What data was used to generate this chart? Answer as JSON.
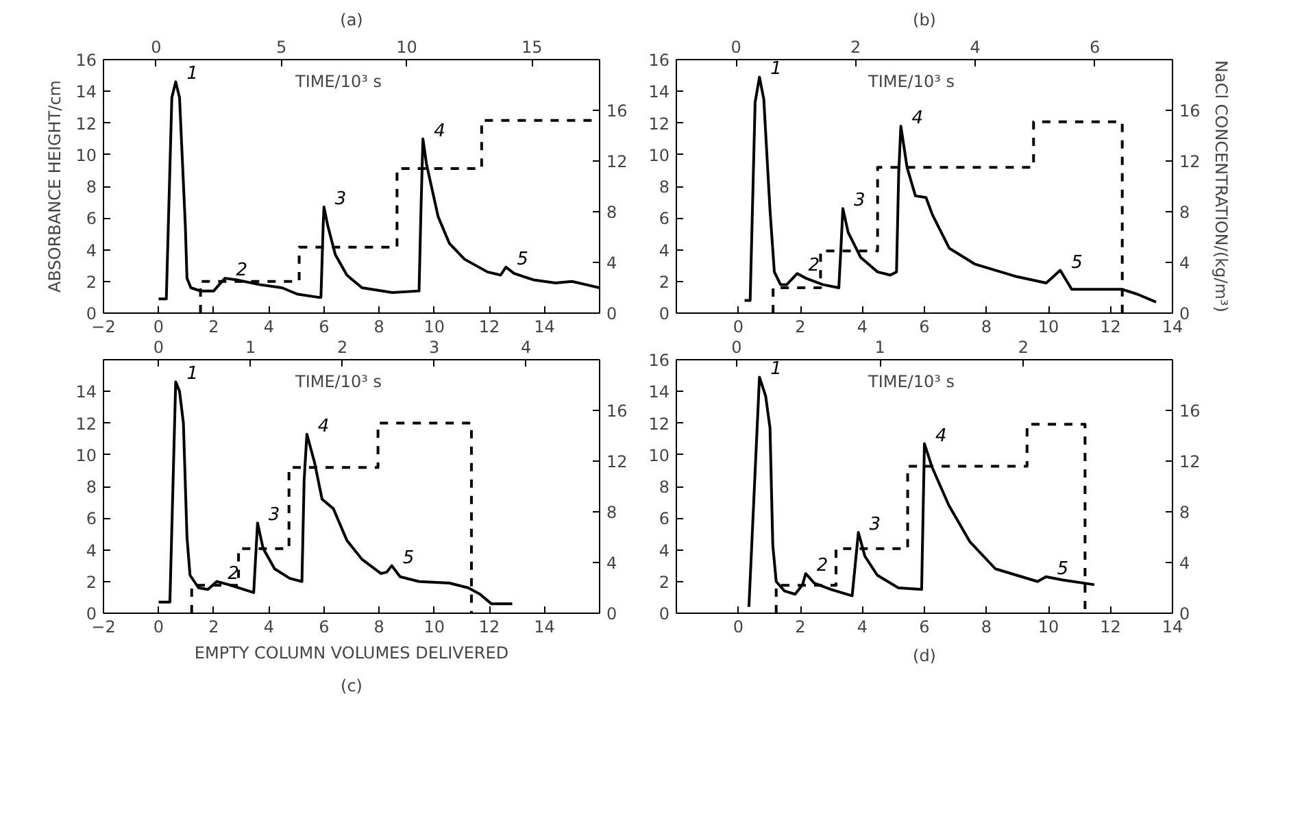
{
  "chart_data": [
    {
      "type": "line",
      "title": "(a)",
      "ylabel": "ABSORBANCE HEIGHT/cm",
      "x2label": "TIME/10³ s",
      "xlim": [
        -2,
        16
      ],
      "xticks": [
        -2,
        0,
        2,
        4,
        6,
        8,
        10,
        12,
        14
      ],
      "ylim": [
        0,
        16
      ],
      "yticks": [
        0,
        2,
        4,
        6,
        8,
        10,
        12,
        14,
        16
      ],
      "y2lim": [
        0,
        20
      ],
      "y2ticks": [
        0,
        4,
        8,
        12,
        16
      ],
      "x2lim": [
        -2.1,
        17.7
      ],
      "x2ticks": [
        0,
        5,
        10,
        15
      ],
      "grid": false,
      "series": [
        {
          "color": "#000000",
          "line_style": "solid",
          "x": [
            0,
            0.28,
            0.48,
            0.62,
            0.76,
            0.97,
            1.03,
            1.17,
            1.52,
            2.0,
            2.2,
            2.41,
            2.83,
            3.66,
            4.48,
            5.03,
            5.79,
            5.89,
            5.97,
            6.0,
            6.14,
            6.41,
            6.83,
            7.38,
            8.48,
            9.45,
            9.52,
            9.59,
            9.72,
            10.14,
            10.55,
            11.1,
            11.93,
            12.41,
            12.6,
            12.9,
            13.6,
            14.4,
            15.0,
            15.5,
            16.0
          ],
          "values": [
            0.9,
            0.9,
            13.6,
            14.6,
            13.6,
            5.5,
            2.2,
            1.6,
            1.4,
            1.4,
            1.8,
            2.2,
            2.1,
            1.8,
            1.6,
            1.2,
            1.0,
            1.0,
            5.5,
            6.7,
            5.5,
            3.7,
            2.4,
            1.6,
            1.3,
            1.4,
            6.6,
            11.0,
            9.4,
            6.1,
            4.4,
            3.4,
            2.6,
            2.4,
            2.9,
            2.5,
            2.1,
            1.9,
            2.0,
            1.8,
            1.6
          ]
        },
        {
          "color": "#000000",
          "line_style": "dashed",
          "axis": "y2",
          "x": [
            1.52,
            1.52,
            5.1,
            5.1,
            8.65,
            8.65,
            11.72,
            11.72,
            16.0
          ],
          "values": [
            0,
            2.5,
            2.5,
            5.2,
            5.2,
            11.4,
            11.4,
            15.2,
            15.2
          ]
        }
      ],
      "annotations": [
        {
          "text": "1",
          "x": 0.62,
          "y": 14.6
        },
        {
          "text": "2",
          "x": 2.41,
          "y": 2.2
        },
        {
          "text": "3",
          "x": 6.0,
          "y": 6.7
        },
        {
          "text": "4",
          "x": 9.59,
          "y": 11.0
        },
        {
          "text": "5",
          "x": 12.6,
          "y": 2.9
        }
      ]
    },
    {
      "type": "line",
      "title": "(b)",
      "y2label": "NaCl CONCENTRATION/(kg/m³)",
      "x2label": "TIME/10³ s",
      "xlim": [
        -2,
        14
      ],
      "xticks": [
        0,
        2,
        4,
        6,
        8,
        10,
        12,
        14
      ],
      "ylim": [
        0,
        16
      ],
      "yticks": [
        0,
        2,
        4,
        6,
        8,
        10,
        12,
        14,
        16
      ],
      "y2lim": [
        0,
        20
      ],
      "y2ticks": [
        0,
        4,
        8,
        12,
        16
      ],
      "x2lim": [
        -1.0,
        7.3
      ],
      "x2ticks": [
        0,
        2,
        4,
        6
      ],
      "grid": false,
      "series": [
        {
          "color": "#000000",
          "line_style": "solid",
          "x": [
            0.2,
            0.38,
            0.54,
            0.68,
            0.82,
            1.02,
            1.16,
            1.36,
            1.56,
            1.9,
            2.18,
            2.72,
            3.24,
            3.31,
            3.37,
            3.54,
            3.95,
            4.49,
            4.9,
            5.1,
            5.17,
            5.24,
            5.44,
            5.71,
            6.05,
            6.26,
            6.8,
            7.62,
            8.98,
            9.93,
            10.38,
            10.75,
            11.7,
            12.38,
            12.86,
            13.47
          ],
          "values": [
            0.8,
            0.8,
            13.3,
            14.9,
            13.5,
            6.5,
            2.6,
            1.8,
            1.8,
            2.5,
            2.2,
            1.8,
            1.6,
            4.2,
            6.6,
            5.1,
            3.5,
            2.6,
            2.4,
            2.6,
            8.8,
            11.8,
            9.2,
            7.4,
            7.3,
            6.2,
            4.1,
            3.1,
            2.3,
            1.9,
            2.7,
            1.5,
            1.5,
            1.5,
            1.2,
            0.7
          ]
        },
        {
          "color": "#000000",
          "line_style": "dashed",
          "axis": "y2",
          "x": [
            1.12,
            1.12,
            2.65,
            2.65,
            4.49,
            4.49,
            9.52,
            9.52,
            12.38,
            12.38
          ],
          "values": [
            0,
            2.0,
            2.0,
            4.9,
            4.9,
            11.5,
            11.5,
            15.1,
            15.1,
            0
          ]
        }
      ],
      "annotations": [
        {
          "text": "1",
          "x": 0.68,
          "y": 14.9
        },
        {
          "text": "2",
          "x": 1.9,
          "y": 2.5
        },
        {
          "text": "3",
          "x": 3.37,
          "y": 6.6
        },
        {
          "text": "4",
          "x": 5.24,
          "y": 11.8
        },
        {
          "text": "5",
          "x": 10.38,
          "y": 2.7
        }
      ]
    },
    {
      "type": "line",
      "title": "(c)",
      "xlabel": "EMPTY COLUMN VOLUMES DELIVERED",
      "x2label": "TIME/10³ s",
      "xlim": [
        -2,
        16
      ],
      "xticks": [
        -2,
        0,
        2,
        4,
        6,
        8,
        10,
        12,
        14
      ],
      "ylim": [
        0,
        16
      ],
      "yticks": [
        0,
        2,
        4,
        6,
        8,
        10,
        12,
        14,
        {
          "value": 16,
          "label": null
        }
      ],
      "y2lim": [
        0,
        20
      ],
      "y2ticks": [
        0,
        4,
        8,
        12,
        16
      ],
      "x2lim": [
        -0.6,
        4.8
      ],
      "x2ticks": [
        0,
        1,
        2,
        3,
        4
      ],
      "grid": false,
      "series": [
        {
          "color": "#000000",
          "line_style": "solid",
          "x": [
            0,
            0.41,
            0.62,
            0.76,
            0.9,
            1.03,
            1.14,
            1.45,
            1.79,
            2.11,
            2.55,
            3.45,
            3.59,
            3.79,
            4.21,
            4.76,
            5.2,
            5.28,
            5.38,
            5.66,
            5.93,
            6.34,
            6.83,
            7.38,
            8.07,
            8.28,
            8.46,
            8.76,
            9.45,
            10.55,
            11.24,
            11.66,
            12.07,
            12.83
          ],
          "values": [
            0.7,
            0.7,
            14.6,
            14.0,
            12.0,
            4.8,
            2.4,
            1.6,
            1.5,
            2.0,
            1.8,
            1.3,
            5.7,
            4.1,
            2.8,
            2.2,
            2.0,
            8.4,
            11.3,
            9.5,
            7.2,
            6.6,
            4.6,
            3.4,
            2.5,
            2.6,
            3.0,
            2.3,
            2.0,
            1.9,
            1.6,
            1.2,
            0.6,
            0.6
          ]
        },
        {
          "color": "#000000",
          "line_style": "dashed",
          "axis": "y2",
          "x": [
            1.2,
            1.2,
            2.9,
            2.9,
            4.73,
            4.73,
            7.96,
            7.96,
            11.35,
            11.35
          ],
          "values": [
            0,
            2.2,
            2.2,
            5.1,
            5.1,
            11.5,
            11.5,
            15.0,
            15.0,
            0
          ]
        }
      ],
      "annotations": [
        {
          "text": "1",
          "x": 0.62,
          "y": 14.6
        },
        {
          "text": "2",
          "x": 2.11,
          "y": 2.0
        },
        {
          "text": "3",
          "x": 3.59,
          "y": 5.7
        },
        {
          "text": "4",
          "x": 5.38,
          "y": 11.3
        },
        {
          "text": "5",
          "x": 8.46,
          "y": 3.0
        }
      ]
    },
    {
      "type": "line",
      "title": "(d)",
      "x2label": "TIME/10³ s",
      "xlim": [
        -2,
        14
      ],
      "xticks": [
        0,
        2,
        4,
        6,
        8,
        10,
        12,
        14
      ],
      "ylim": [
        0,
        16
      ],
      "yticks": [
        0,
        2,
        4,
        6,
        8,
        10,
        12,
        14,
        16
      ],
      "y2lim": [
        0,
        20
      ],
      "y2ticks": [
        0,
        4,
        8,
        12,
        16
      ],
      "x2lim": [
        -0.42,
        3.04
      ],
      "x2ticks": [
        0,
        1,
        2
      ],
      "grid": false,
      "series": [
        {
          "color": "#000000",
          "line_style": "solid",
          "x": [
            0.34,
            0.68,
            0.88,
            1.02,
            1.11,
            1.22,
            1.49,
            1.83,
            2.07,
            2.17,
            2.45,
            2.99,
            3.67,
            3.87,
            4.08,
            4.48,
            5.16,
            5.91,
            6.0,
            6.25,
            6.79,
            7.47,
            8.29,
            9.65,
            9.92,
            10.46,
            11.48
          ],
          "values": [
            0.4,
            14.9,
            13.7,
            11.7,
            4.3,
            2.0,
            1.4,
            1.2,
            1.8,
            2.5,
            1.9,
            1.5,
            1.1,
            5.1,
            3.6,
            2.4,
            1.6,
            1.5,
            10.7,
            9.2,
            6.8,
            4.5,
            2.8,
            2.0,
            2.3,
            2.1,
            1.8
          ]
        },
        {
          "color": "#000000",
          "line_style": "dashed",
          "axis": "y2",
          "x": [
            1.22,
            1.22,
            3.15,
            3.15,
            5.46,
            5.46,
            9.31,
            9.31,
            11.18,
            11.18
          ],
          "values": [
            0,
            2.2,
            2.2,
            5.1,
            5.1,
            11.6,
            11.6,
            14.9,
            14.9,
            0
          ]
        }
      ],
      "annotations": [
        {
          "text": "1",
          "x": 0.68,
          "y": 14.9
        },
        {
          "text": "2",
          "x": 2.17,
          "y": 2.5
        },
        {
          "text": "3",
          "x": 3.87,
          "y": 5.1
        },
        {
          "text": "4",
          "x": 6.0,
          "y": 10.7
        },
        {
          "text": "5",
          "x": 9.92,
          "y": 2.3
        }
      ]
    }
  ]
}
